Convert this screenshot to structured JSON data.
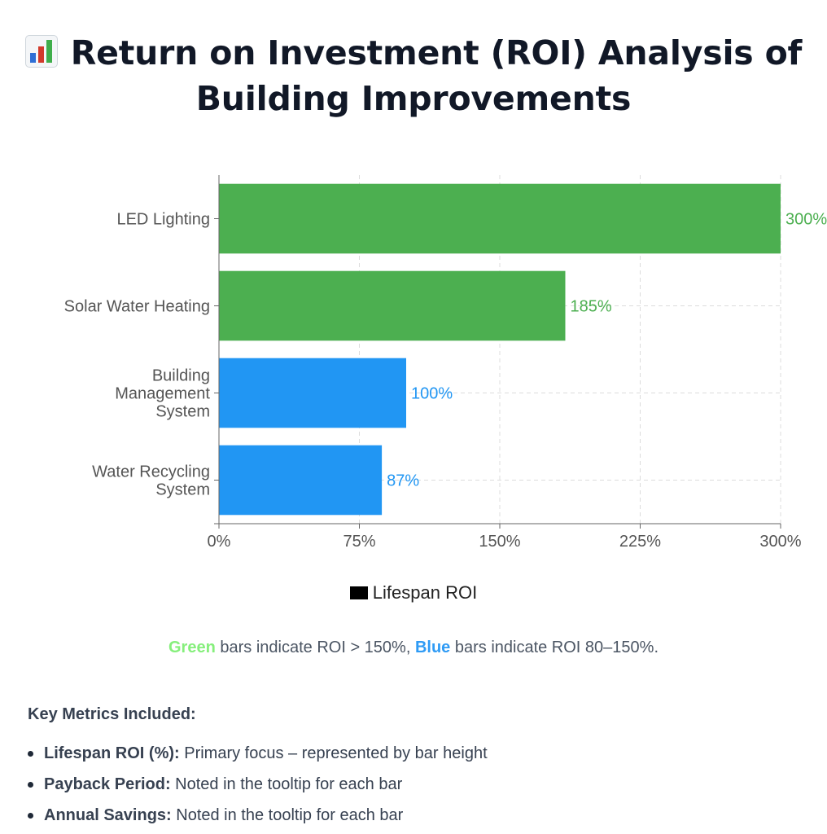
{
  "title": {
    "icon": "bar-chart-icon",
    "text": "Return on Investment (ROI) Analysis of Building Improvements"
  },
  "chart_data": {
    "type": "bar",
    "orientation": "horizontal",
    "categories": [
      "LED Lighting",
      "Solar Water Heating",
      "Building Management System",
      "Water Recycling System"
    ],
    "category_lines": [
      [
        "LED Lighting"
      ],
      [
        "Solar Water Heating"
      ],
      [
        "Building",
        "Management",
        "System"
      ],
      [
        "Water Recycling",
        "System"
      ]
    ],
    "series": [
      {
        "name": "Lifespan ROI",
        "values": [
          300,
          185,
          100,
          87
        ],
        "colors": [
          "#4caf50",
          "#4caf50",
          "#2196f3",
          "#2196f3"
        ]
      }
    ],
    "data_labels": [
      "300%",
      "185%",
      "100%",
      "87%"
    ],
    "x_ticks": [
      "0%",
      "75%",
      "150%",
      "225%",
      "300%"
    ],
    "x_tick_values": [
      0,
      75,
      150,
      225,
      300
    ],
    "xlim": [
      0,
      300
    ],
    "xlabel": "",
    "ylabel": "",
    "grid": true,
    "legend": "bottom-center"
  },
  "legend": {
    "label": "Lifespan ROI",
    "swatch_color": "#000000"
  },
  "note": {
    "green_word": "Green",
    "text_1": " bars indicate ROI > 150%, ",
    "blue_word": "Blue",
    "text_2": " bars indicate ROI 80–150%."
  },
  "metrics": {
    "heading": "Key Metrics Included:",
    "items": [
      {
        "term": "Lifespan ROI (%):",
        "desc": " Primary focus – represented by bar height"
      },
      {
        "term": "Payback Period:",
        "desc": " Noted in the tooltip for each bar"
      },
      {
        "term": "Annual Savings:",
        "desc": " Noted in the tooltip for each bar"
      }
    ]
  },
  "colors": {
    "green_bar": "#4caf50",
    "blue_bar": "#2196f3",
    "green_note": "#86ef7c",
    "blue_note": "#2f9bf5"
  }
}
